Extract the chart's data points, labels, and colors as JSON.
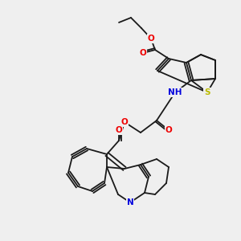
{
  "bg_color": "#efefef",
  "figsize": [
    3.0,
    3.0
  ],
  "dpi": 100,
  "bond_color": "#1a1a1a",
  "colors": {
    "N": "#0000dd",
    "O": "#ee0000",
    "S": "#bbbb00",
    "H": "#88aaaa",
    "C": "#1a1a1a"
  },
  "font_size": 7.5
}
